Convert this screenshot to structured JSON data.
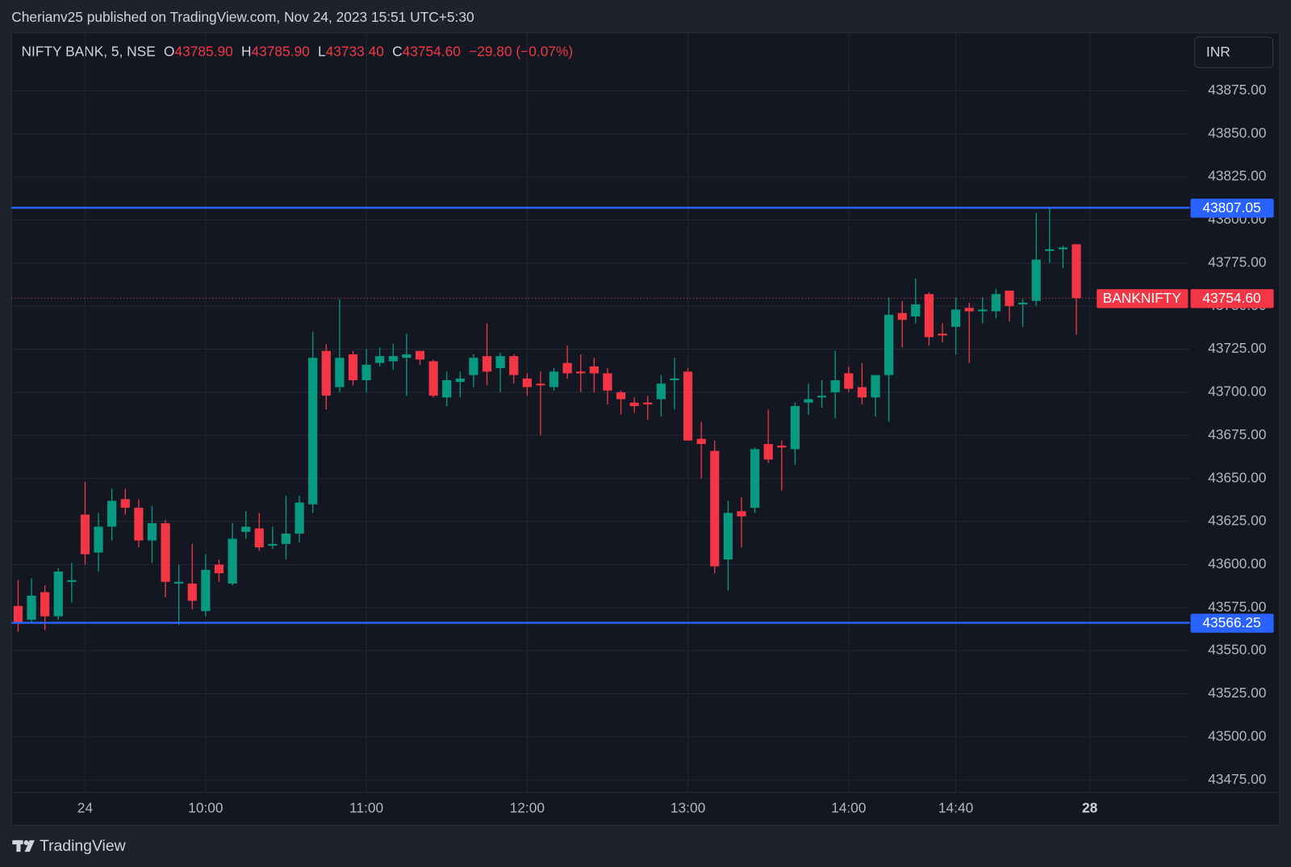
{
  "header": {
    "publisher": "Cherianv25 published on TradingView.com, Nov 24, 2023 15:51 UTC+5:30"
  },
  "footer": {
    "brand": "TradingView"
  },
  "chart_data": {
    "type": "candlestick",
    "legend": {
      "symbol": "NIFTY BANK, 5, NSE",
      "items": [
        {
          "prefix": "O",
          "value": "43785.90"
        },
        {
          "prefix": "H",
          "value": "43785.90"
        },
        {
          "prefix": "L",
          "value": "43733.40"
        },
        {
          "prefix": "C",
          "value": "43754.60"
        }
      ],
      "change": "−29.80 (−0.07%)",
      "color": "#f23645"
    },
    "currency": "INR",
    "up_color": "#089981",
    "down_color": "#f23645",
    "grid": true,
    "categories": [
      null,
      null,
      null,
      null,
      null,
      "24",
      null,
      null,
      null,
      null,
      null,
      null,
      null,
      null,
      "10:00",
      null,
      null,
      null,
      null,
      null,
      null,
      null,
      null,
      null,
      null,
      null,
      "11:00",
      null,
      null,
      null,
      null,
      null,
      null,
      null,
      null,
      null,
      null,
      null,
      "12:00",
      null,
      null,
      null,
      null,
      null,
      null,
      null,
      null,
      null,
      null,
      null,
      "13:00",
      null,
      null,
      null,
      null,
      null,
      null,
      null,
      null,
      null,
      null,
      null,
      "14:00",
      null,
      null,
      null,
      null,
      null,
      null,
      null,
      "14:40",
      null,
      null,
      null,
      null,
      null,
      null,
      null,
      null,
      null,
      "28"
    ],
    "open": [
      43576,
      43568,
      43584,
      43570,
      43590,
      43629,
      43607,
      43622,
      43638,
      43633,
      43614,
      43624,
      43589,
      43589,
      43573,
      43600,
      43589,
      43619,
      43621,
      43611,
      43612,
      43618,
      43635,
      43724,
      43703,
      43722,
      43707,
      43717,
      43718,
      43720,
      43724,
      43718,
      43697,
      43706,
      43710,
      43721,
      43714,
      43721,
      43708,
      43705,
      43703,
      43717,
      43712,
      43715,
      43711,
      43700,
      43694,
      43694,
      43696,
      43707,
      43712,
      43673,
      43666,
      43603,
      43631,
      43633,
      43670,
      43669,
      43667,
      43694,
      43697,
      43700,
      43711,
      43703,
      43697,
      43710,
      43746,
      43744,
      43757,
      43734,
      43738,
      43749,
      43747,
      43747,
      43759,
      43751,
      43753,
      43782,
      43783,
      43785.9,
      null
    ],
    "high": [
      43591,
      43592,
      43588,
      43598,
      43601,
      43648,
      43630,
      43644,
      43644,
      43638,
      43634,
      43626,
      43600,
      43612,
      43606,
      43603,
      43624,
      43631,
      43630,
      43622,
      43640,
      43640,
      43735,
      43728,
      43754,
      43724,
      43725,
      43726,
      43728,
      43734,
      43724,
      43719,
      43712,
      43712,
      43722,
      43740,
      43723,
      43722,
      43711,
      43712,
      43714,
      43727,
      43722,
      43720,
      43714,
      43701,
      43697,
      43698,
      43710,
      43720,
      43714,
      43683,
      43672,
      43637,
      43639,
      43668,
      43690,
      43672,
      43694,
      43705,
      43707,
      43724,
      43715,
      43717,
      43710,
      43755,
      43753,
      43766,
      43758,
      43740,
      43755,
      43752,
      43755,
      43760,
      43759,
      43754,
      43804,
      43807,
      43785,
      43785.9,
      null
    ],
    "low": [
      43561,
      43566,
      43562,
      43568,
      43578,
      43600,
      43596,
      43614,
      43629,
      43610,
      43601,
      43581,
      43565,
      43574,
      43570,
      43590,
      43588,
      43615,
      43608,
      43609,
      43603,
      43613,
      43630,
      43690,
      43700,
      43704,
      43700,
      43715,
      43713,
      43698,
      43716,
      43697,
      43692,
      43697,
      43703,
      43704,
      43700,
      43705,
      43698,
      43675,
      43701,
      43708,
      43700,
      43700,
      43693,
      43687,
      43688,
      43684,
      43686,
      43690,
      43672,
      43650,
      43595,
      43585,
      43610,
      43630,
      43659,
      43643,
      43658,
      43687,
      43691,
      43685,
      43700,
      43693,
      43686,
      43683,
      43726,
      43740,
      43727,
      43729,
      43722,
      43717,
      43740,
      43743,
      43741,
      43738,
      43750,
      43775,
      43772,
      43733.4,
      null
    ],
    "close": [
      43566,
      43582,
      43570,
      43596,
      43591,
      43606,
      43622,
      43637,
      43633,
      43614,
      43624,
      43590,
      43590,
      43579,
      43597,
      43595,
      43615,
      43622,
      43610,
      43612,
      43618,
      43636,
      43720,
      43698,
      43720,
      43707,
      43716,
      43721,
      43721,
      43722,
      43719,
      43698,
      43707,
      43708,
      43720,
      43712,
      43721,
      43710,
      43703,
      43704,
      43712,
      43711,
      43711,
      43711,
      43701,
      43696,
      43692,
      43693,
      43705,
      43708,
      43672,
      43670,
      43599,
      43630,
      43628,
      43667,
      43661,
      43668,
      43692,
      43696,
      43698,
      43707,
      43702,
      43697,
      43710,
      43745,
      43742,
      43751,
      43732,
      43733,
      43748,
      43747,
      43748,
      43757,
      43750,
      43752,
      43777,
      43783,
      43784,
      43754.6,
      null
    ],
    "ylim": [
      43467.8,
      43908.5
    ],
    "yticks": [
      {
        "value": 43475,
        "label": "43475.00"
      },
      {
        "value": 43500,
        "label": "43500.00"
      },
      {
        "value": 43525,
        "label": "43525.00"
      },
      {
        "value": 43550,
        "label": "43550.00"
      },
      {
        "value": 43575,
        "label": "43575.00"
      },
      {
        "value": 43600,
        "label": "43600.00"
      },
      {
        "value": 43625,
        "label": "43625.00"
      },
      {
        "value": 43650,
        "label": "43650.00"
      },
      {
        "value": 43675,
        "label": "43675.00"
      },
      {
        "value": 43700,
        "label": "43700.00"
      },
      {
        "value": 43725,
        "label": "43725.00"
      },
      {
        "value": 43750,
        "label": "43750.00"
      },
      {
        "value": 43775,
        "label": "43775.00"
      },
      {
        "value": 43800,
        "label": "43800.00"
      },
      {
        "value": 43825,
        "label": "43825.00"
      },
      {
        "value": 43850,
        "label": "43850.00"
      },
      {
        "value": 43875,
        "label": "43875.00"
      }
    ],
    "hlines": [
      {
        "value": 43807.05,
        "color": "#2962ff"
      },
      {
        "value": 43566.25,
        "color": "#2962ff"
      }
    ],
    "price_line": {
      "name": "BANKNIFTY",
      "value": 43754.6,
      "label": "43754.60",
      "color": "#f23645"
    }
  }
}
